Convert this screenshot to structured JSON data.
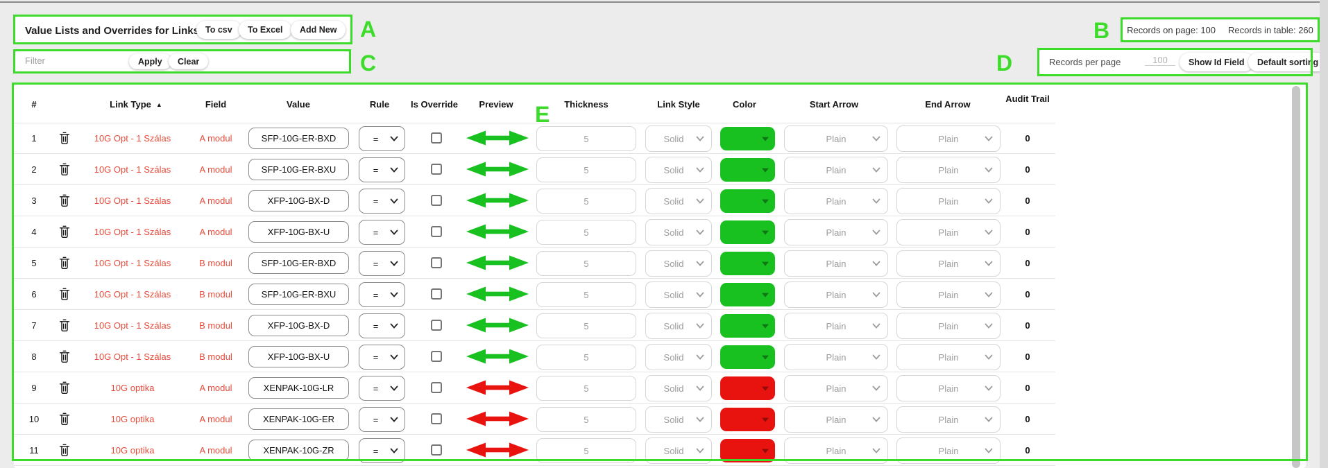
{
  "toolbar": {
    "title": "Value Lists and Overrides for Links",
    "to_csv": "To csv",
    "to_excel": "To Excel",
    "add_new": "Add New"
  },
  "records_info": {
    "on_page": "Records on page: 100",
    "in_table": "Records in table: 260"
  },
  "filter_bar": {
    "placeholder": "Filter",
    "apply": "Apply",
    "clear": "Clear"
  },
  "page_controls": {
    "records_per_page_label": "Records per page",
    "records_per_page_value": "100",
    "show_id_field": "Show Id Field",
    "default_sorting": "Default sorting"
  },
  "annotations": {
    "color": "#3ddc2a",
    "a": "A",
    "b": "B",
    "c": "C",
    "d": "D",
    "e": "E"
  },
  "table": {
    "columns": [
      "#",
      "Link Type",
      "Field",
      "Value",
      "Rule",
      "Is Override",
      "Preview",
      "Thickness",
      "Link Style",
      "Color",
      "Start Arrow",
      "End Arrow",
      "Audit Trail"
    ],
    "sorted_by": "Link Type",
    "sort_direction": "asc",
    "rows": [
      {
        "num": "1",
        "link_type": "10G Opt - 1 Szálas",
        "field": "A modul",
        "value": "SFP-10G-ER-BXD",
        "rule": "=",
        "is_override": false,
        "thickness": "5",
        "link_style": "Solid",
        "color": "#18c020",
        "start_arrow": "Plain",
        "end_arrow": "Plain",
        "audit": "0"
      },
      {
        "num": "2",
        "link_type": "10G Opt - 1 Szálas",
        "field": "A modul",
        "value": "SFP-10G-ER-BXU",
        "rule": "=",
        "is_override": false,
        "thickness": "5",
        "link_style": "Solid",
        "color": "#18c020",
        "start_arrow": "Plain",
        "end_arrow": "Plain",
        "audit": "0"
      },
      {
        "num": "3",
        "link_type": "10G Opt - 1 Szálas",
        "field": "A modul",
        "value": "XFP-10G-BX-D",
        "rule": "=",
        "is_override": false,
        "thickness": "5",
        "link_style": "Solid",
        "color": "#18c020",
        "start_arrow": "Plain",
        "end_arrow": "Plain",
        "audit": "0"
      },
      {
        "num": "4",
        "link_type": "10G Opt - 1 Szálas",
        "field": "A modul",
        "value": "XFP-10G-BX-U",
        "rule": "=",
        "is_override": false,
        "thickness": "5",
        "link_style": "Solid",
        "color": "#18c020",
        "start_arrow": "Plain",
        "end_arrow": "Plain",
        "audit": "0"
      },
      {
        "num": "5",
        "link_type": "10G Opt - 1 Szálas",
        "field": "B modul",
        "value": "SFP-10G-ER-BXD",
        "rule": "=",
        "is_override": false,
        "thickness": "5",
        "link_style": "Solid",
        "color": "#18c020",
        "start_arrow": "Plain",
        "end_arrow": "Plain",
        "audit": "0"
      },
      {
        "num": "6",
        "link_type": "10G Opt - 1 Szálas",
        "field": "B modul",
        "value": "SFP-10G-ER-BXU",
        "rule": "=",
        "is_override": false,
        "thickness": "5",
        "link_style": "Solid",
        "color": "#18c020",
        "start_arrow": "Plain",
        "end_arrow": "Plain",
        "audit": "0"
      },
      {
        "num": "7",
        "link_type": "10G Opt - 1 Szálas",
        "field": "B modul",
        "value": "XFP-10G-BX-D",
        "rule": "=",
        "is_override": false,
        "thickness": "5",
        "link_style": "Solid",
        "color": "#18c020",
        "start_arrow": "Plain",
        "end_arrow": "Plain",
        "audit": "0"
      },
      {
        "num": "8",
        "link_type": "10G Opt - 1 Szálas",
        "field": "B modul",
        "value": "XFP-10G-BX-U",
        "rule": "=",
        "is_override": false,
        "thickness": "5",
        "link_style": "Solid",
        "color": "#18c020",
        "start_arrow": "Plain",
        "end_arrow": "Plain",
        "audit": "0"
      },
      {
        "num": "9",
        "link_type": "10G optika",
        "field": "A modul",
        "value": "XENPAK-10G-LR",
        "rule": "=",
        "is_override": false,
        "thickness": "5",
        "link_style": "Solid",
        "color": "#e8120f",
        "start_arrow": "Plain",
        "end_arrow": "Plain",
        "audit": "0"
      },
      {
        "num": "10",
        "link_type": "10G optika",
        "field": "A modul",
        "value": "XENPAK-10G-ER",
        "rule": "=",
        "is_override": false,
        "thickness": "5",
        "link_style": "Solid",
        "color": "#e8120f",
        "start_arrow": "Plain",
        "end_arrow": "Plain",
        "audit": "0"
      },
      {
        "num": "11",
        "link_type": "10G optika",
        "field": "A modul",
        "value": "XENPAK-10G-ZR",
        "rule": "=",
        "is_override": false,
        "thickness": "5",
        "link_style": "Solid",
        "color": "#e8120f",
        "start_arrow": "Plain",
        "end_arrow": "Plain",
        "audit": "0"
      }
    ]
  }
}
